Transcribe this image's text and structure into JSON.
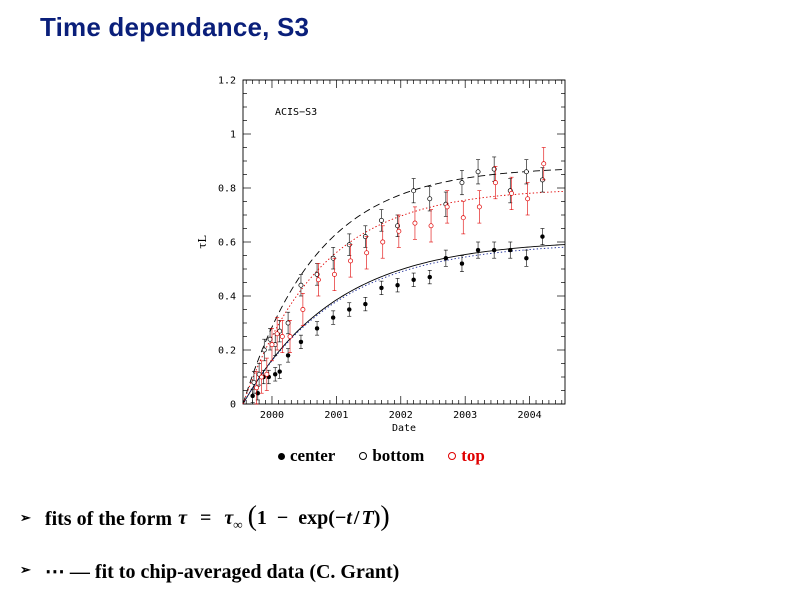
{
  "slide": {
    "title": "Time dependance, S3"
  },
  "legend": {
    "center": "center",
    "bottom": "bottom",
    "top": "top"
  },
  "bullets": {
    "fits_prefix": "fits of the form",
    "fits_formula": {
      "tau": "τ",
      "equals": "=",
      "tau_inf": "τ",
      "inf_sub": "∞",
      "open_paren": "(",
      "one": "1",
      "minus": "−",
      "exp": "exp(−",
      "t": "t",
      "slash": "/",
      "T": "T",
      "close_exp": ")",
      "close_paren": ")"
    },
    "dotted_note": "⋯ — fit to chip-averaged data (C. Grant)"
  },
  "colors": {
    "title": "#0a1f7a",
    "top_series": "#e00000",
    "black": "#000000"
  },
  "chart_data": {
    "type": "scatter",
    "annotation": "ACIS−S3",
    "xlabel": "Date",
    "ylabel": "τ_L",
    "xlim": [
      1999.55,
      2004.55
    ],
    "ylim": [
      0,
      1.2
    ],
    "xticks": [
      2000,
      2001,
      2002,
      2003,
      2004
    ],
    "yticks": [
      0,
      0.2,
      0.4,
      0.6,
      0.8,
      1,
      1.2
    ],
    "ytick_labels": [
      "0",
      "0.2",
      "0.4",
      "0.6",
      "0.8",
      "1",
      "1.2"
    ],
    "series": [
      {
        "name": "center",
        "marker": "filled",
        "color": "#000000",
        "x": [
          1999.7,
          1999.78,
          1999.87,
          1999.95,
          2000.05,
          2000.12,
          2000.25,
          2000.45,
          2000.7,
          2000.95,
          2001.2,
          2001.45,
          2001.7,
          2001.95,
          2002.2,
          2002.45,
          2002.7,
          2002.95,
          2003.2,
          2003.45,
          2003.7,
          2003.95,
          2004.2
        ],
        "y": [
          0.03,
          0.04,
          0.1,
          0.1,
          0.11,
          0.12,
          0.18,
          0.23,
          0.28,
          0.32,
          0.35,
          0.37,
          0.43,
          0.44,
          0.46,
          0.47,
          0.54,
          0.52,
          0.57,
          0.57,
          0.57,
          0.54,
          0.62
        ],
        "err": [
          0.025,
          0.025,
          0.025,
          0.025,
          0.025,
          0.025,
          0.025,
          0.025,
          0.025,
          0.025,
          0.025,
          0.025,
          0.025,
          0.025,
          0.025,
          0.025,
          0.03,
          0.03,
          0.03,
          0.03,
          0.03,
          0.03,
          0.03
        ]
      },
      {
        "name": "bottom",
        "marker": "open",
        "color": "#000000",
        "x": [
          1999.72,
          1999.8,
          1999.88,
          1999.97,
          2000.05,
          2000.12,
          2000.25,
          2000.45,
          2000.7,
          2000.95,
          2001.2,
          2001.45,
          2001.7,
          2001.95,
          2002.2,
          2002.45,
          2002.7,
          2002.95,
          2003.2,
          2003.45,
          2003.7,
          2003.95,
          2004.2
        ],
        "y": [
          0.08,
          0.11,
          0.2,
          0.24,
          0.22,
          0.27,
          0.3,
          0.44,
          0.48,
          0.54,
          0.59,
          0.62,
          0.68,
          0.66,
          0.79,
          0.76,
          0.74,
          0.82,
          0.86,
          0.87,
          0.79,
          0.86,
          0.83
        ],
        "err": [
          0.04,
          0.04,
          0.04,
          0.04,
          0.04,
          0.04,
          0.04,
          0.04,
          0.04,
          0.04,
          0.04,
          0.04,
          0.04,
          0.04,
          0.045,
          0.045,
          0.045,
          0.045,
          0.045,
          0.045,
          0.045,
          0.045,
          0.045
        ]
      },
      {
        "name": "top",
        "marker": "open",
        "color": "#e00000",
        "x": [
          1999.76,
          1999.84,
          1999.92,
          2000.0,
          2000.08,
          2000.16,
          2000.28,
          2000.48,
          2000.72,
          2000.97,
          2001.22,
          2001.47,
          2001.72,
          2001.97,
          2002.22,
          2002.47,
          2002.72,
          2002.97,
          2003.22,
          2003.47,
          2003.72,
          2003.97,
          2004.22
        ],
        "y": [
          0.06,
          0.1,
          0.11,
          0.22,
          0.26,
          0.25,
          0.25,
          0.35,
          0.46,
          0.48,
          0.53,
          0.56,
          0.6,
          0.64,
          0.67,
          0.66,
          0.73,
          0.69,
          0.73,
          0.82,
          0.78,
          0.76,
          0.89
        ],
        "err": [
          0.06,
          0.06,
          0.06,
          0.06,
          0.06,
          0.06,
          0.06,
          0.06,
          0.06,
          0.06,
          0.06,
          0.06,
          0.06,
          0.06,
          0.06,
          0.06,
          0.06,
          0.06,
          0.06,
          0.06,
          0.06,
          0.06,
          0.06
        ]
      }
    ],
    "fit_curves": [
      {
        "name": "center fit",
        "style": "solid",
        "color": "#000000",
        "t0": 1999.55,
        "tau_inf": 0.61,
        "T": 1.45
      },
      {
        "name": "center chip-averaged fit",
        "style": "dotted",
        "color": "#1a2a9a",
        "t0": 1999.55,
        "tau_inf": 0.6,
        "T": 1.45
      },
      {
        "name": "bottom fit",
        "style": "dashed",
        "color": "#000000",
        "t0": 1999.55,
        "tau_inf": 0.88,
        "T": 1.15
      },
      {
        "name": "top fit",
        "style": "dotted",
        "color": "#e00000",
        "t0": 1999.55,
        "tau_inf": 0.8,
        "T": 1.2
      }
    ]
  }
}
